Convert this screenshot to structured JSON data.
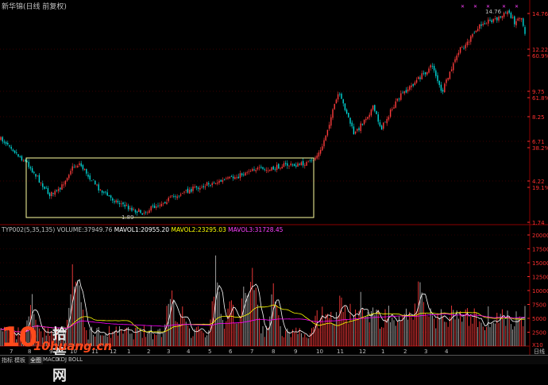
{
  "window": {
    "title": "新华锦(日线 前复权)"
  },
  "price_axis": {
    "labels": [
      "14.76",
      "12.22",
      "60.9%",
      "9.75",
      "61.8%",
      "8.25",
      "6.71",
      "38.2%",
      "4.22",
      "19.1%",
      "1.74"
    ],
    "colors": {
      "price": "#ff3030",
      "pct": "#ff3030"
    }
  },
  "price_panel": {
    "high_label": "14.76",
    "low_label": "1.89"
  },
  "indicator": {
    "name": "TYP002(5,35,135)",
    "volume": "VOLUME:37949.76",
    "mavol1": "MAVOL1:20955.20",
    "mavol2": "MAVOL2:23295.03",
    "mavol3": "MAVOL3:31728.45",
    "axis_labels": [
      "20000",
      "17500",
      "15000",
      "12500",
      "10000",
      "7500",
      "5000",
      "2500",
      "X10"
    ],
    "colors": {
      "volume": "#c0c0c0",
      "mavol1": "#ffffff",
      "mavol2": "#ffff00",
      "mavol3": "#ff00ff"
    }
  },
  "time_axis": {
    "labels": [
      "7",
      "8",
      "9",
      "10",
      "11",
      "12",
      "1",
      "2",
      "3",
      "4",
      "5",
      "6",
      "7",
      "8",
      "9",
      "10",
      "11",
      "12",
      "1",
      "2",
      "3",
      "4",
      "日线"
    ]
  },
  "watermark": {
    "number": "10",
    "cn_text": "拾荒网",
    "url": "10huang.cn"
  },
  "bottom_tabs": {
    "items": [
      "指标",
      "模板",
      "全图",
      "MACD",
      "KDJ",
      "BOLL"
    ]
  },
  "colors": {
    "background": "#000000",
    "up": "#ff3c3c",
    "down": "#00d8d8",
    "box": "#ffffa0",
    "grid": "#8b0000"
  }
}
